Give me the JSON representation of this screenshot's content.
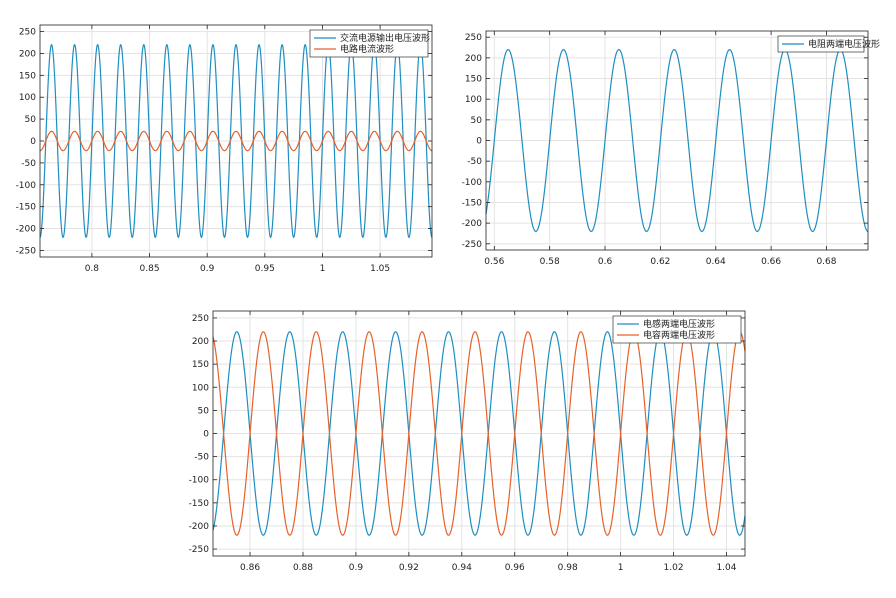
{
  "colors": {
    "series_blue": "#1f8ec1",
    "series_orange": "#e6622a",
    "grid": "#e3e3e3",
    "axis": "#222222"
  },
  "chart_data": [
    {
      "type": "line",
      "title": "",
      "xlabel": "",
      "ylabel": "",
      "xlim": [
        0.755,
        1.095
      ],
      "ylim": [
        -265,
        265
      ],
      "xticks": [
        "0.8",
        "0.85",
        "0.9",
        "0.95",
        "1",
        "1.05"
      ],
      "yticks": [
        "250",
        "200",
        "150",
        "100",
        "50",
        "0",
        "-50",
        "-100",
        "-150",
        "-200",
        "-250"
      ],
      "grid": true,
      "legend_position": "top-right",
      "series": [
        {
          "name": "交流电源输出电压波形",
          "color": "#1f8ec1",
          "frequency_hz": 50,
          "amplitude": 220,
          "phase_deg": 0
        },
        {
          "name": "电路电流波形",
          "color": "#e6622a",
          "frequency_hz": 50,
          "amplitude": 22,
          "phase_deg": 0
        }
      ]
    },
    {
      "type": "line",
      "title": "",
      "xlabel": "",
      "ylabel": "",
      "xlim": [
        0.557,
        0.695
      ],
      "ylim": [
        -265,
        265
      ],
      "xticks": [
        "0.56",
        "0.58",
        "0.6",
        "0.62",
        "0.64",
        "0.66",
        "0.68"
      ],
      "yticks": [
        "250",
        "200",
        "150",
        "100",
        "50",
        "0",
        "-50",
        "-100",
        "-150",
        "-200",
        "-250"
      ],
      "grid": true,
      "legend_position": "top-right",
      "series": [
        {
          "name": "电阻两端电压波形",
          "color": "#1f8ec1",
          "frequency_hz": 50,
          "amplitude": 220,
          "phase_deg": 0
        }
      ]
    },
    {
      "type": "line",
      "title": "",
      "xlabel": "",
      "ylabel": "",
      "xlim": [
        0.846,
        1.047
      ],
      "ylim": [
        -265,
        265
      ],
      "xticks": [
        "0.86",
        "0.88",
        "0.9",
        "0.92",
        "0.94",
        "0.96",
        "0.98",
        "1",
        "1.02",
        "1.04"
      ],
      "yticks": [
        "250",
        "200",
        "150",
        "100",
        "50",
        "0",
        "-50",
        "-100",
        "-150",
        "-200",
        "-250"
      ],
      "grid": true,
      "legend_position": "top-right",
      "series": [
        {
          "name": "电感两端电压波形",
          "color": "#1f8ec1",
          "frequency_hz": 50,
          "amplitude": 220,
          "phase_deg": 180
        },
        {
          "name": "电容两端电压波形",
          "color": "#e6622a",
          "frequency_hz": 50,
          "amplitude": 220,
          "phase_deg": 0
        }
      ]
    }
  ]
}
